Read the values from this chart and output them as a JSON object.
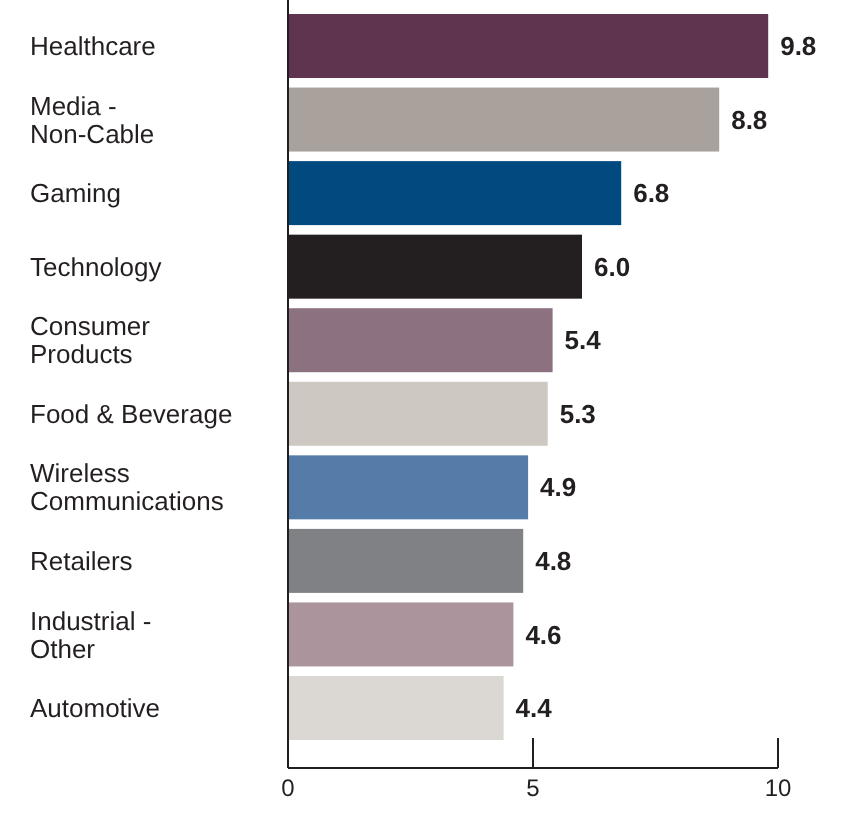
{
  "chart_data": {
    "type": "bar",
    "orientation": "horizontal",
    "categories": [
      "Healthcare",
      "Media -\nNon-Cable",
      "Gaming",
      "Technology",
      "Consumer\nProducts",
      "Food & Beverage",
      "Wireless\nCommunications",
      "Retailers",
      "Industrial -\nOther",
      "Automotive"
    ],
    "values": [
      9.8,
      8.8,
      6.8,
      6.0,
      5.4,
      5.3,
      4.9,
      4.8,
      4.6,
      4.4
    ],
    "value_labels": [
      "9.8",
      "8.8",
      "6.8",
      "6.0",
      "5.4",
      "5.3",
      "4.9",
      "4.8",
      "4.6",
      "4.4"
    ],
    "colors": [
      "#5e344f",
      "#a9a19b",
      "#004a80",
      "#231f20",
      "#8c7180",
      "#cdc8c2",
      "#557ca8",
      "#808184",
      "#ab949c",
      "#dbd7d3"
    ],
    "xlim": [
      0,
      10
    ],
    "xticks": [
      0,
      5,
      10
    ]
  }
}
